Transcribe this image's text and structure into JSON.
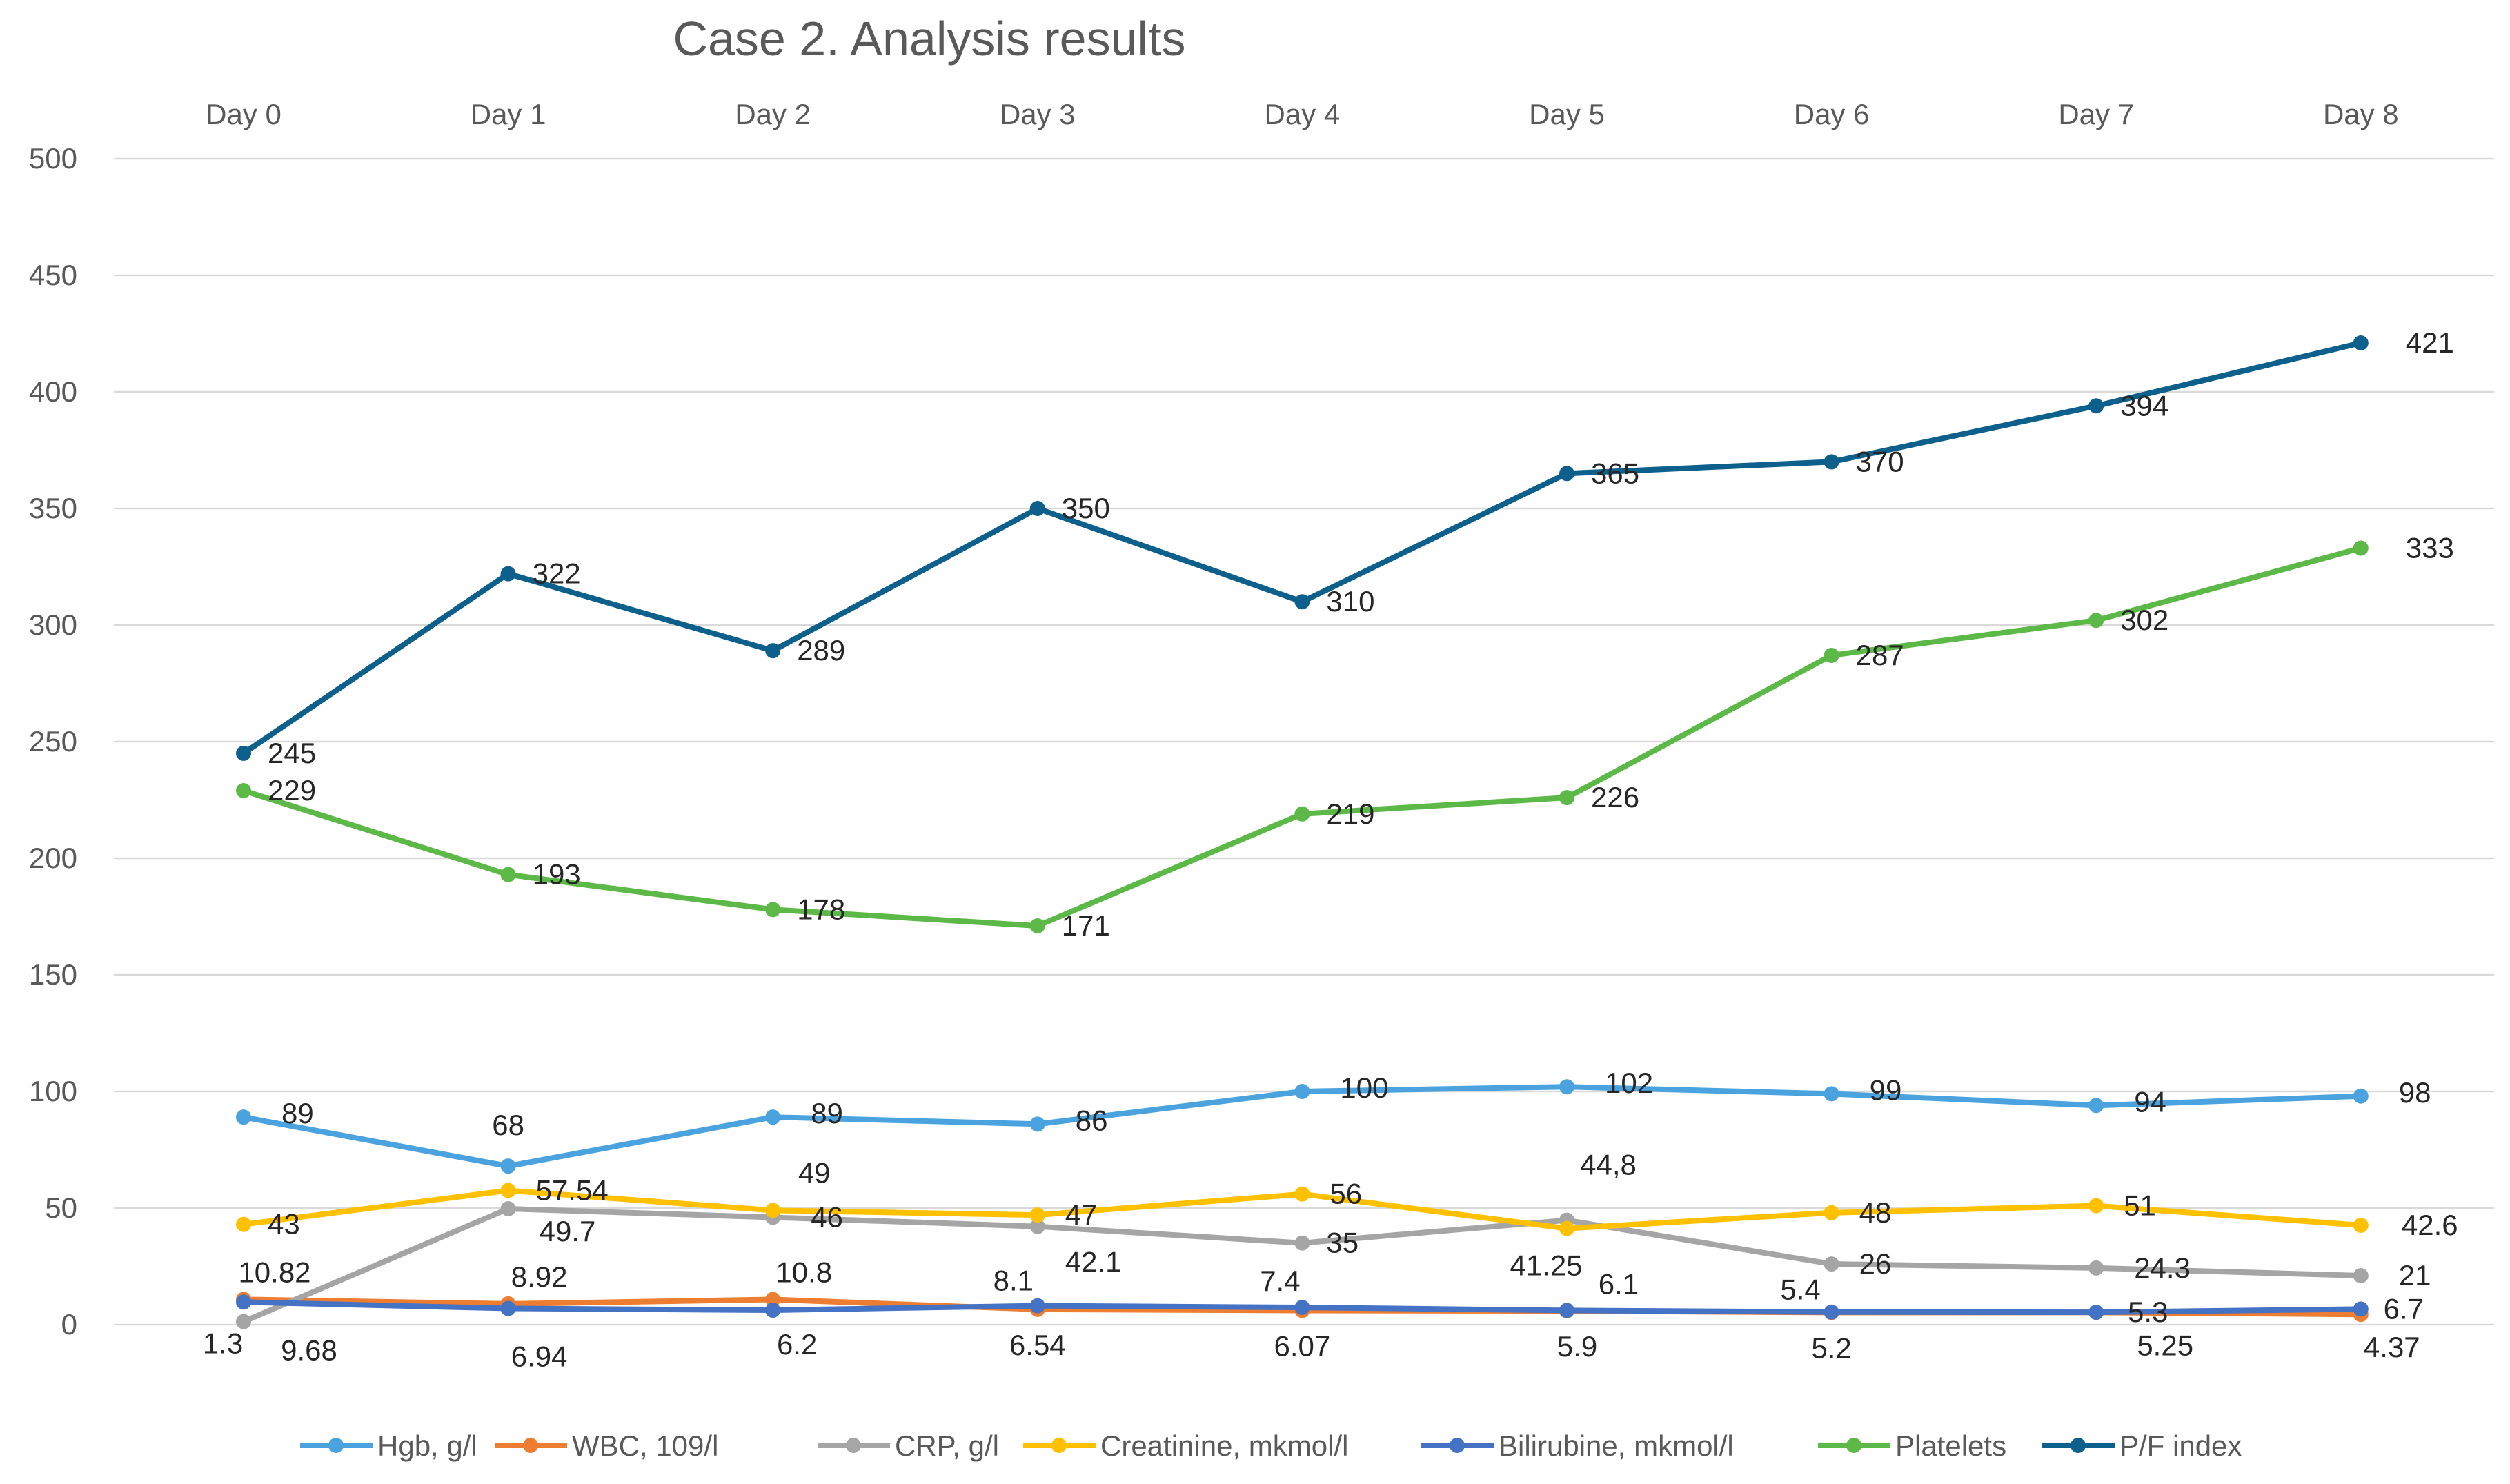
{
  "chart_data": {
    "type": "line",
    "title": "Case 2. Analysis results",
    "categories": [
      "Day 0",
      "Day 1",
      "Day 2",
      "Day 3",
      "Day 4",
      "Day 5",
      "Day 6",
      "Day 7",
      "Day 8"
    ],
    "ylim": [
      0,
      500
    ],
    "yticks": [
      0,
      50,
      100,
      150,
      200,
      250,
      300,
      350,
      400,
      450,
      500
    ],
    "x_axis_position": "top",
    "grid": true,
    "legend_position": "bottom",
    "series": [
      {
        "name": "Hgb, g/l",
        "color": "#4aa3df",
        "values": [
          89,
          68,
          89,
          86,
          100,
          102,
          99,
          94,
          98
        ],
        "labels": [
          "89",
          "68",
          "89",
          "86",
          "100",
          "102",
          "99",
          "94",
          "98"
        ]
      },
      {
        "name": "WBC, 109/l",
        "color": "#ed7d31",
        "values": [
          10.82,
          8.92,
          10.8,
          6.54,
          6.07,
          5.9,
          5.2,
          5.25,
          4.37
        ],
        "labels": [
          "10.82",
          "8.92",
          "10.8",
          "6.54",
          "6.07",
          "5.9",
          "5.2",
          "5.25",
          "4.37"
        ]
      },
      {
        "name": "CRP, g/l",
        "color": "#a5a5a5",
        "values": [
          1.3,
          49.7,
          46,
          42.1,
          35,
          44.8,
          26,
          24.3,
          21
        ],
        "labels": [
          "1.3",
          "49.7",
          "46",
          "42.1",
          "35",
          "44,8",
          "26",
          "24.3",
          "21"
        ]
      },
      {
        "name": "Creatinine, mkmol/l",
        "color": "#ffc000",
        "values": [
          43,
          57.54,
          49,
          47,
          56,
          41.25,
          48,
          51,
          42.6
        ],
        "labels": [
          "43",
          "57.54",
          "49",
          "47",
          "56",
          "41.25",
          "48",
          "51",
          "42.6"
        ]
      },
      {
        "name": "Bilirubine, mkmol/l",
        "color": "#4472c4",
        "values": [
          9.68,
          6.94,
          6.2,
          8.1,
          7.4,
          6.1,
          5.4,
          5.3,
          6.7
        ],
        "labels": [
          "9.68",
          "6.94",
          "6.2",
          "8.1",
          "7.4",
          "6.1",
          "5.4",
          "5.3",
          "6.7"
        ]
      },
      {
        "name": "Platelets",
        "color": "#5cb947",
        "values": [
          229,
          193,
          178,
          171,
          219,
          226,
          287,
          302,
          333
        ],
        "labels": [
          "229",
          "193",
          "178",
          "171",
          "219",
          "226",
          "287",
          "302",
          "333"
        ]
      },
      {
        "name": "P/F index",
        "color": "#0d5f8c",
        "values": [
          245,
          322,
          289,
          350,
          310,
          365,
          370,
          394,
          421
        ],
        "labels": [
          "245",
          "322",
          "289",
          "350",
          "310",
          "365",
          "370",
          "394",
          "421"
        ]
      }
    ]
  }
}
